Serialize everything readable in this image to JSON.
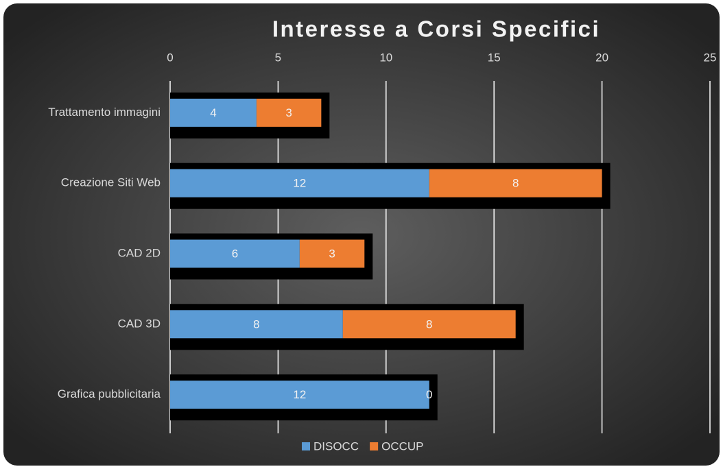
{
  "chart_data": {
    "type": "bar",
    "orientation": "horizontal",
    "stacked": true,
    "title": "Interesse a Corsi Specifici",
    "categories": [
      "Trattamento immagini",
      "Creazione Siti Web",
      "CAD 2D",
      "CAD 3D",
      "Grafica pubblicitaria"
    ],
    "series": [
      {
        "name": "DISOCC",
        "color": "#5b9bd5",
        "values": [
          4,
          12,
          6,
          8,
          12
        ]
      },
      {
        "name": "OCCUP",
        "color": "#ed7d31",
        "values": [
          3,
          8,
          3,
          8,
          0
        ]
      }
    ],
    "xlim": [
      0,
      25
    ],
    "xticks": [
      0,
      5,
      10,
      15,
      20,
      25
    ],
    "grid": true,
    "legend": "bottom"
  }
}
